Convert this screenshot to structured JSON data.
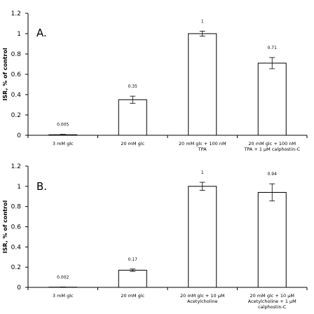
{
  "chart_data": [
    {
      "type": "bar",
      "panel_label": "A.",
      "ylabel": "ISR, % of control",
      "ylim": [
        0,
        1.2
      ],
      "yticks": [
        "0",
        "0.2",
        "0.4",
        "0.6",
        "0.8",
        "1",
        "1.2"
      ],
      "categories": [
        [
          "3 mM glc"
        ],
        [
          "20 mM glc"
        ],
        [
          "20 mM glc + 100 nM",
          "TPA"
        ],
        [
          "20 mM glc + 100 nM",
          "TPA + 1 µM calphostin-C"
        ]
      ],
      "values": [
        0.005,
        0.35,
        1,
        0.71
      ],
      "errors": [
        0.004,
        0.035,
        0.025,
        0.055
      ],
      "data_labels": [
        "0.005",
        "0.35",
        "1",
        "0.71"
      ]
    },
    {
      "type": "bar",
      "panel_label": "B.",
      "ylabel": "ISR, % of control",
      "ylim": [
        0,
        1.2
      ],
      "yticks": [
        "0",
        "0.2",
        "0.4",
        "0.6",
        "0.8",
        "1",
        "1.2"
      ],
      "categories": [
        [
          "3 mM glc"
        ],
        [
          "20 mM glc"
        ],
        [
          "20 mM glc + 10 µM",
          "Acetylcholine"
        ],
        [
          "20 mM glc + 10 µM",
          "Acetylcholine + 1 µM",
          "calphostin-C"
        ]
      ],
      "values": [
        0.002,
        0.17,
        1,
        0.94
      ],
      "errors": [
        0.002,
        0.012,
        0.04,
        0.085
      ],
      "data_labels": [
        "0.002",
        "0.17",
        "1",
        "0.94"
      ]
    }
  ]
}
